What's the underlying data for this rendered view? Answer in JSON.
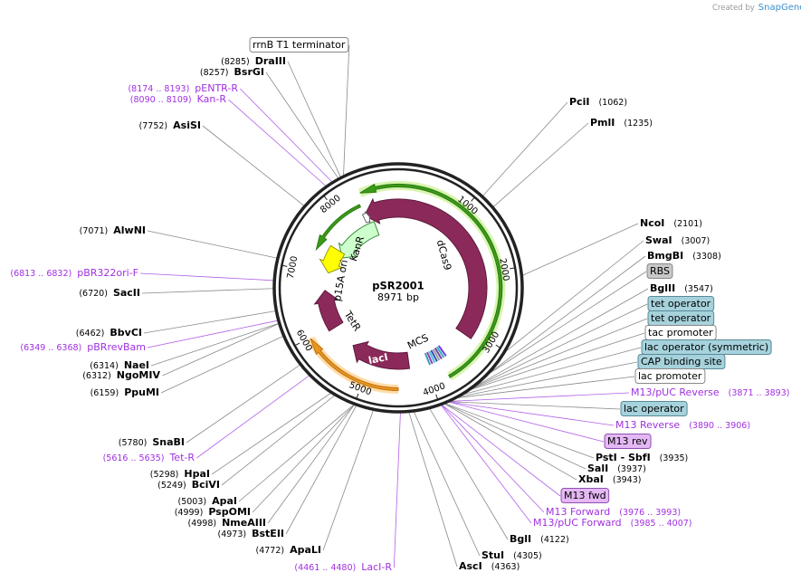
{
  "logo": {
    "prefix": "Created by",
    "brand": "SnapGene"
  },
  "plasmid": {
    "name": "pSR2001",
    "length": 8971,
    "unit": "bp"
  },
  "ticks": [
    1000,
    2000,
    3000,
    4000,
    5000,
    6000,
    7000,
    8000
  ],
  "features": [
    "dCas9",
    "KanR",
    "p15A ori",
    "TetR",
    "lacI",
    "MCS"
  ],
  "labels": [
    {
      "name": "rrnB T1 terminator"
    },
    {
      "name": "DraIII",
      "position": "(8285)"
    },
    {
      "name": "BsrGI",
      "position": "(8257)"
    },
    {
      "name": "pENTR-R",
      "position": "(8174 .. 8193)"
    },
    {
      "name": "Kan-R",
      "position": "(8090 .. 8109)"
    },
    {
      "name": "AsiSI",
      "position": "(7752)"
    },
    {
      "name": "AlwNI",
      "position": "(7071)"
    },
    {
      "name": "pBR322ori-F",
      "position": "(6813 .. 6832)"
    },
    {
      "name": "SacII",
      "position": "(6720)"
    },
    {
      "name": "BbvCI",
      "position": "(6462)"
    },
    {
      "name": "pBRrevBam",
      "position": "(6349 .. 6368)"
    },
    {
      "name": "NaeI",
      "position": "(6314)"
    },
    {
      "name": "NgoMIV",
      "position": "(6312)"
    },
    {
      "name": "PpuMI",
      "position": "(6159)"
    },
    {
      "name": "SnaBI",
      "position": "(5780)"
    },
    {
      "name": "Tet-R",
      "position": "(5616 .. 5635)"
    },
    {
      "name": "HpaI",
      "position": "(5298)"
    },
    {
      "name": "BciVI",
      "position": "(5249)"
    },
    {
      "name": "ApaI",
      "position": "(5003)"
    },
    {
      "name": "PspOMI",
      "position": "(4999)"
    },
    {
      "name": "NmeAIII",
      "position": "(4998)"
    },
    {
      "name": "BstEII",
      "position": "(4973)"
    },
    {
      "name": "ApaLI",
      "position": "(4772)"
    },
    {
      "name": "LacI-R",
      "position": "(4461 .. 4480)"
    },
    {
      "name": "PciI",
      "position": "(1062)"
    },
    {
      "name": "PmlI",
      "position": "(1235)"
    },
    {
      "name": "NcoI",
      "position": "(2101)"
    },
    {
      "name": "SwaI",
      "position": "(3007)"
    },
    {
      "name": "BmgBI",
      "position": "(3308)"
    },
    {
      "name": "RBS"
    },
    {
      "name": "BglII",
      "position": "(3547)"
    },
    {
      "name": "tet operator"
    },
    {
      "name": "tet operator"
    },
    {
      "name": "tac promoter"
    },
    {
      "name": "lac operator (symmetric)"
    },
    {
      "name": "CAP binding site"
    },
    {
      "name": "lac promoter"
    },
    {
      "name": "M13/pUC Reverse",
      "position": "(3871 .. 3893)"
    },
    {
      "name": "lac operator"
    },
    {
      "name": "M13 Reverse",
      "position": "(3890 .. 3906)"
    },
    {
      "name": "M13 rev"
    },
    {
      "name": "PstI - SbfI",
      "position": "(3935)"
    },
    {
      "name": "SalI",
      "position": "(3937)"
    },
    {
      "name": "XbaI",
      "position": "(3943)"
    },
    {
      "name": "M13 fwd"
    },
    {
      "name": "M13 Forward",
      "position": "(3976 .. 3993)"
    },
    {
      "name": "M13/pUC Forward",
      "position": "(3985 .. 4007)"
    },
    {
      "name": "BglI",
      "position": "(4122)"
    },
    {
      "name": "StuI",
      "position": "(4305)"
    },
    {
      "name": "AscI",
      "position": "(4363)"
    }
  ]
}
